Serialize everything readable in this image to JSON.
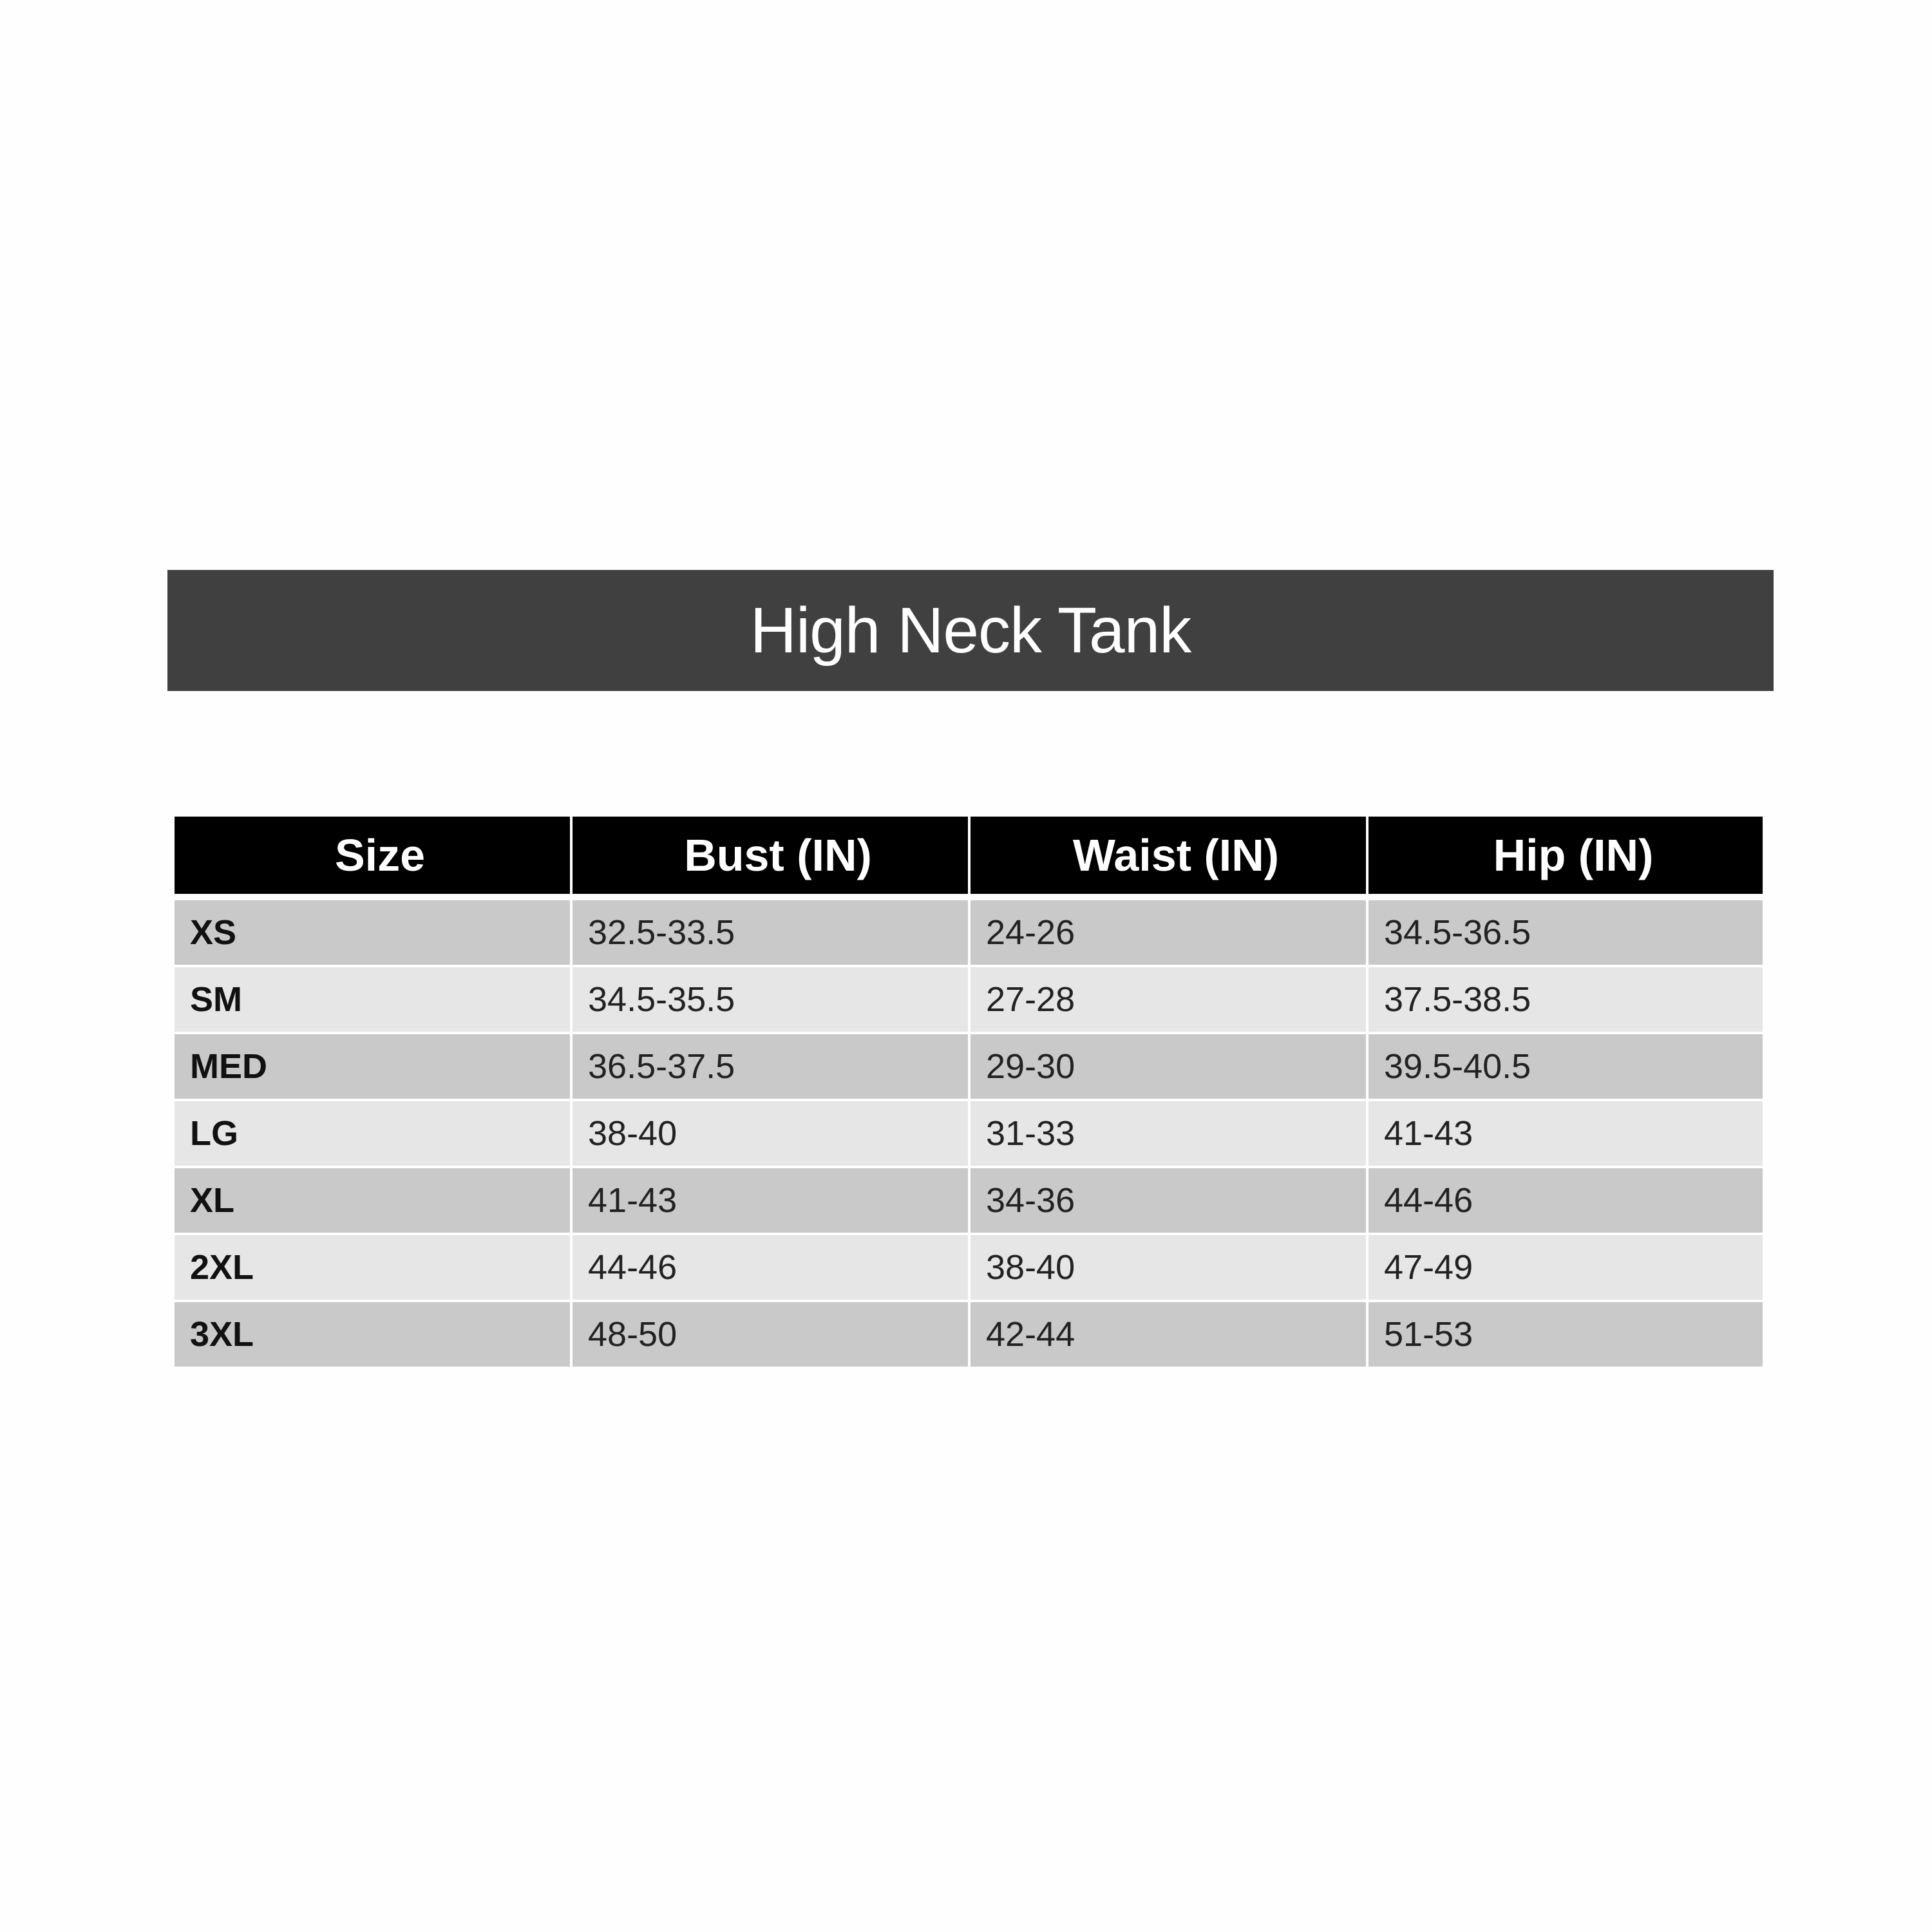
{
  "title": "High Neck Tank",
  "table": {
    "headers": [
      "Size",
      "Bust (IN)",
      "Waist (IN)",
      "Hip (IN)"
    ],
    "rows": [
      [
        "XS",
        "32.5-33.5",
        "24-26",
        "34.5-36.5"
      ],
      [
        "SM",
        "34.5-35.5",
        "27-28",
        "37.5-38.5"
      ],
      [
        "MED",
        "36.5-37.5",
        "29-30",
        "39.5-40.5"
      ],
      [
        "LG",
        "38-40",
        "31-33",
        "41-43"
      ],
      [
        "XL",
        "41-43",
        "34-36",
        "44-46"
      ],
      [
        "2XL",
        "44-46",
        "38-40",
        "47-49"
      ],
      [
        "3XL",
        "48-50",
        "42-44",
        "51-53"
      ]
    ]
  },
  "colors": {
    "title_bg": "#404040",
    "header_bg": "#000000",
    "row_dark": "#c9c9c9",
    "row_light": "#e6e6e6"
  }
}
